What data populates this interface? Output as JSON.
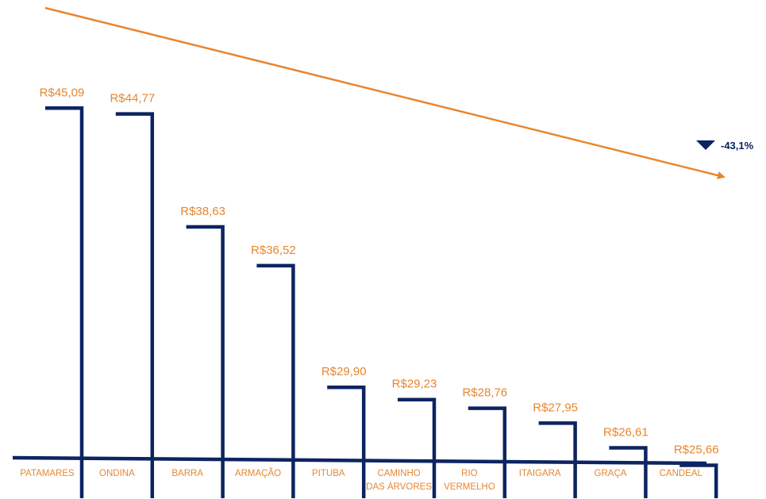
{
  "colors": {
    "bar": "#0c2461",
    "label": "#e8862e",
    "trend": "#e8862e",
    "change": "#0c2461"
  },
  "change": {
    "label": "-43,1%",
    "icon": "triangle-down-icon"
  },
  "chart_data": {
    "type": "bar",
    "categories": [
      [
        "PATAMARES"
      ],
      [
        "ONDINA"
      ],
      [
        "BARRA"
      ],
      [
        "ARMAÇÃO"
      ],
      [
        "PITUBA"
      ],
      [
        "CAMINHO",
        "DAS ÁRVORES"
      ],
      [
        "RIO",
        "VERMELHO"
      ],
      [
        "ITAIGARA"
      ],
      [
        "GRAÇA"
      ],
      [
        "CANDEAL"
      ]
    ],
    "values": [
      45.09,
      44.77,
      38.63,
      36.52,
      29.9,
      29.23,
      28.76,
      27.95,
      26.61,
      25.66
    ],
    "value_labels": [
      "R$45,09",
      "R$44,77",
      "R$38,63",
      "R$36,52",
      "R$29,90",
      "R$29,23",
      "R$28,76",
      "R$27,95",
      "R$26,61",
      "R$25,66"
    ],
    "grid": false,
    "legend": "none",
    "trend": "down"
  }
}
